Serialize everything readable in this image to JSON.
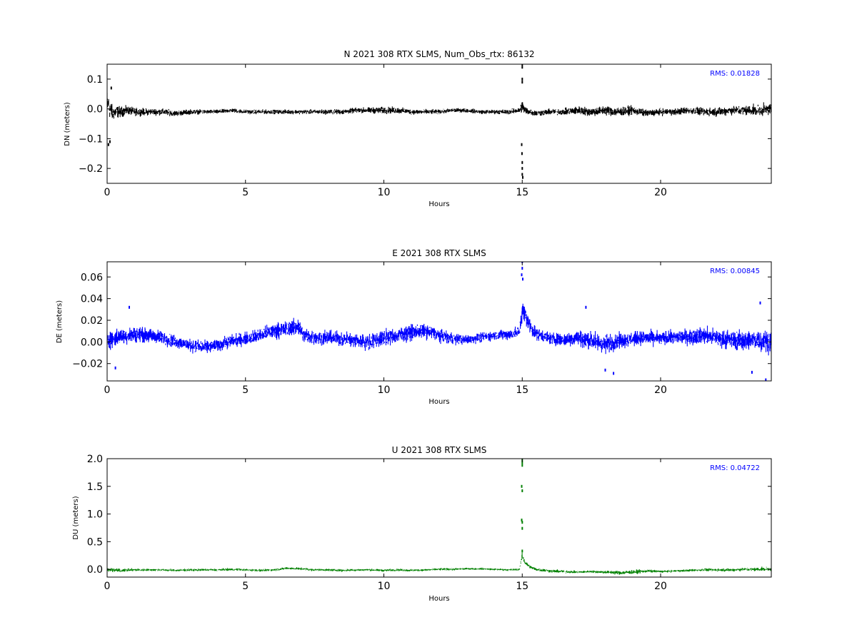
{
  "chart_data": [
    {
      "type": "scatter",
      "title": "N 2021 308 RTX  SLMS, Num_Obs_rtx: 86132",
      "xlabel": "Hours",
      "ylabel": "DN (meters)",
      "xlim": [
        0,
        24
      ],
      "ylim": [
        -0.25,
        0.15
      ],
      "xticks": [
        0,
        5,
        10,
        15,
        20
      ],
      "xtick_labels": [
        "0",
        "5",
        "10",
        "15",
        "20"
      ],
      "yticks": [
        -0.2,
        -0.1,
        0.0,
        0.1
      ],
      "ytick_labels": [
        "−0.2",
        "−0.1",
        "0.0",
        "0.1"
      ],
      "grid": false,
      "rms_label": "RMS:  0.01828",
      "series_color": "#000000",
      "annotation_color": "#0000ff",
      "series": [
        {
          "x": [
            0,
            0.1,
            0.2,
            0.3,
            0.5,
            0.75,
            1,
            1.5,
            2,
            2.5,
            3,
            3.5,
            4,
            4.5,
            5,
            5.5,
            6,
            6.5,
            7,
            7.5,
            8,
            8.5,
            9,
            9.5,
            10,
            10.5,
            11,
            11.5,
            12,
            12.5,
            13,
            13.5,
            14,
            14.5,
            14.9,
            15,
            15.1,
            15.3,
            15.5,
            16,
            16.5,
            17,
            17.5,
            18,
            18.5,
            19,
            19.5,
            20,
            20.5,
            21,
            21.5,
            22,
            22.5,
            23,
            23.5,
            24
          ],
          "y": [
            0.02,
            0.0,
            -0.015,
            -0.01,
            -0.01,
            -0.005,
            -0.01,
            -0.01,
            -0.01,
            -0.015,
            -0.01,
            -0.01,
            -0.01,
            -0.005,
            -0.01,
            -0.01,
            -0.01,
            -0.01,
            -0.01,
            -0.01,
            -0.01,
            -0.01,
            -0.005,
            -0.005,
            -0.005,
            -0.005,
            -0.01,
            -0.01,
            -0.01,
            -0.005,
            -0.005,
            -0.01,
            -0.01,
            -0.01,
            -0.005,
            0.01,
            -0.005,
            -0.01,
            -0.015,
            -0.01,
            -0.01,
            -0.005,
            -0.01,
            -0.005,
            -0.01,
            -0.005,
            -0.015,
            -0.01,
            -0.01,
            -0.005,
            -0.01,
            -0.01,
            -0.005,
            -0.005,
            -0.005,
            0.0
          ],
          "spread": [
            0.06,
            0.045,
            0.035,
            0.03,
            0.025,
            0.02,
            0.018,
            0.016,
            0.015,
            0.013,
            0.012,
            0.01,
            0.01,
            0.01,
            0.01,
            0.01,
            0.01,
            0.01,
            0.01,
            0.01,
            0.012,
            0.012,
            0.012,
            0.014,
            0.016,
            0.015,
            0.012,
            0.012,
            0.01,
            0.01,
            0.01,
            0.01,
            0.01,
            0.012,
            0.012,
            0.03,
            0.02,
            0.015,
            0.014,
            0.014,
            0.015,
            0.02,
            0.02,
            0.022,
            0.022,
            0.02,
            0.016,
            0.016,
            0.016,
            0.017,
            0.018,
            0.02,
            0.02,
            0.022,
            0.024,
            0.028
          ],
          "outliers": [
            {
              "x": 0.05,
              "y": -0.12
            },
            {
              "x": 0.1,
              "y": -0.11
            },
            {
              "x": 0.15,
              "y": 0.07
            },
            {
              "x": 15.0,
              "y": 0.15
            },
            {
              "x": 15.0,
              "y": 0.14
            },
            {
              "x": 15.0,
              "y": 0.1
            },
            {
              "x": 15.0,
              "y": 0.09
            },
            {
              "x": 14.98,
              "y": -0.12
            },
            {
              "x": 14.99,
              "y": -0.15
            },
            {
              "x": 15.0,
              "y": -0.18
            },
            {
              "x": 15.0,
              "y": -0.2
            },
            {
              "x": 15.0,
              "y": -0.22
            },
            {
              "x": 15.02,
              "y": -0.23
            }
          ]
        }
      ]
    },
    {
      "type": "scatter",
      "title": "E 2021 308 RTX  SLMS",
      "xlabel": "Hours",
      "ylabel": "DE (meters)",
      "xlim": [
        0,
        24
      ],
      "ylim": [
        -0.036,
        0.074
      ],
      "xticks": [
        0,
        5,
        10,
        15,
        20
      ],
      "xtick_labels": [
        "0",
        "5",
        "10",
        "15",
        "20"
      ],
      "yticks": [
        -0.02,
        0.0,
        0.02,
        0.04,
        0.06
      ],
      "ytick_labels": [
        "−0.02",
        "0.00",
        "0.02",
        "0.04",
        "0.06"
      ],
      "grid": false,
      "rms_label": "RMS:  0.00845",
      "series_color": "#0000ff",
      "annotation_color": "#0000ff",
      "series": [
        {
          "x": [
            0,
            0.25,
            0.5,
            1,
            1.5,
            2,
            2.5,
            3,
            3.5,
            4,
            4.5,
            5,
            5.5,
            6,
            6.5,
            6.9,
            7.1,
            7.5,
            8,
            8.5,
            9,
            9.5,
            10,
            10.5,
            11,
            11.5,
            12,
            12.5,
            13,
            13.5,
            14,
            14.5,
            14.9,
            15,
            15.1,
            15.3,
            15.5,
            16,
            16.5,
            17,
            17.5,
            18,
            18.5,
            19,
            19.5,
            20,
            20.5,
            21,
            21.5,
            22,
            22.5,
            23,
            23.5,
            24
          ],
          "y": [
            0.002,
            0.003,
            0.005,
            0.007,
            0.006,
            0.004,
            0.0,
            -0.003,
            -0.005,
            -0.003,
            0.001,
            0.003,
            0.006,
            0.01,
            0.012,
            0.015,
            0.006,
            0.004,
            0.004,
            0.003,
            0.001,
            0.0,
            0.004,
            0.006,
            0.009,
            0.01,
            0.006,
            0.003,
            0.002,
            0.004,
            0.006,
            0.007,
            0.009,
            0.03,
            0.025,
            0.014,
            0.008,
            0.003,
            0.002,
            0.004,
            0.001,
            -0.002,
            0.001,
            0.003,
            0.004,
            0.003,
            0.004,
            0.005,
            0.006,
            0.004,
            0.002,
            0.001,
            0.002,
            0.0
          ],
          "spread": [
            0.012,
            0.011,
            0.01,
            0.01,
            0.009,
            0.009,
            0.008,
            0.008,
            0.008,
            0.008,
            0.008,
            0.008,
            0.009,
            0.01,
            0.01,
            0.011,
            0.01,
            0.009,
            0.009,
            0.009,
            0.01,
            0.01,
            0.01,
            0.01,
            0.01,
            0.009,
            0.008,
            0.007,
            0.006,
            0.006,
            0.006,
            0.007,
            0.008,
            0.014,
            0.012,
            0.01,
            0.008,
            0.008,
            0.009,
            0.01,
            0.012,
            0.012,
            0.01,
            0.009,
            0.009,
            0.009,
            0.009,
            0.01,
            0.011,
            0.011,
            0.012,
            0.013,
            0.013,
            0.014
          ],
          "outliers": [
            {
              "x": 0.3,
              "y": -0.024
            },
            {
              "x": 0.8,
              "y": 0.032
            },
            {
              "x": 14.98,
              "y": 0.062
            },
            {
              "x": 15.0,
              "y": 0.068
            },
            {
              "x": 15.0,
              "y": 0.074
            },
            {
              "x": 15.02,
              "y": 0.058
            },
            {
              "x": 17.3,
              "y": 0.032
            },
            {
              "x": 18.0,
              "y": -0.026
            },
            {
              "x": 18.3,
              "y": -0.029
            },
            {
              "x": 23.3,
              "y": -0.028
            },
            {
              "x": 23.8,
              "y": -0.035
            },
            {
              "x": 23.6,
              "y": 0.036
            }
          ]
        }
      ]
    },
    {
      "type": "scatter",
      "title": "U 2021 308 RTX  SLMS",
      "xlabel": "Hours",
      "ylabel": "DU (meters)",
      "xlim": [
        0,
        24
      ],
      "ylim": [
        -0.14,
        2.0
      ],
      "xticks": [
        0,
        5,
        10,
        15,
        20
      ],
      "xtick_labels": [
        "0",
        "5",
        "10",
        "15",
        "20"
      ],
      "yticks": [
        0.0,
        0.5,
        1.0,
        1.5,
        2.0
      ],
      "ytick_labels": [
        "0.0",
        "0.5",
        "1.0",
        "1.5",
        "2.0"
      ],
      "grid": false,
      "rms_label": "RMS:  0.04722",
      "series_color": "#008000",
      "annotation_color": "#0000ff",
      "series": [
        {
          "x": [
            0,
            0.5,
            1,
            1.5,
            2,
            2.5,
            3,
            3.5,
            4,
            4.5,
            5,
            5.5,
            6,
            6.5,
            7,
            7.5,
            8,
            8.5,
            9,
            9.5,
            10,
            10.5,
            11,
            11.5,
            12,
            12.5,
            13,
            13.5,
            14,
            14.5,
            14.9,
            15,
            15.1,
            15.3,
            15.5,
            16,
            16.5,
            17,
            17.5,
            18,
            18.5,
            19,
            19.5,
            20,
            20.5,
            21,
            21.5,
            22,
            22.5,
            23,
            23.5,
            24
          ],
          "y": [
            -0.01,
            -0.02,
            -0.01,
            -0.01,
            -0.01,
            -0.02,
            -0.01,
            -0.01,
            -0.01,
            0.0,
            -0.01,
            -0.02,
            -0.01,
            0.02,
            0.01,
            -0.01,
            -0.01,
            -0.02,
            -0.01,
            -0.01,
            -0.02,
            -0.01,
            -0.02,
            -0.01,
            0.0,
            0.0,
            0.01,
            0.01,
            0.0,
            -0.01,
            0.0,
            0.25,
            0.12,
            0.04,
            0.0,
            -0.03,
            -0.04,
            -0.05,
            -0.04,
            -0.05,
            -0.06,
            -0.05,
            -0.03,
            -0.04,
            -0.03,
            -0.02,
            -0.01,
            -0.01,
            -0.01,
            0.0,
            0.0,
            0.01
          ],
          "spread": [
            0.05,
            0.04,
            0.035,
            0.03,
            0.03,
            0.03,
            0.03,
            0.03,
            0.03,
            0.03,
            0.03,
            0.03,
            0.03,
            0.03,
            0.03,
            0.03,
            0.03,
            0.03,
            0.03,
            0.03,
            0.03,
            0.03,
            0.03,
            0.03,
            0.03,
            0.03,
            0.025,
            0.025,
            0.025,
            0.025,
            0.03,
            0.08,
            0.05,
            0.04,
            0.04,
            0.04,
            0.04,
            0.03,
            0.03,
            0.04,
            0.05,
            0.05,
            0.04,
            0.03,
            0.03,
            0.03,
            0.035,
            0.035,
            0.04,
            0.04,
            0.045,
            0.05
          ],
          "outliers": [
            {
              "x": 15.0,
              "y": 1.98
            },
            {
              "x": 15.0,
              "y": 1.93
            },
            {
              "x": 15.0,
              "y": 1.88
            },
            {
              "x": 14.98,
              "y": 1.5
            },
            {
              "x": 15.0,
              "y": 1.42
            },
            {
              "x": 14.98,
              "y": 0.89
            },
            {
              "x": 15.0,
              "y": 0.85
            },
            {
              "x": 15.0,
              "y": 0.74
            },
            {
              "x": 15.0,
              "y": 0.33
            }
          ]
        }
      ]
    }
  ]
}
